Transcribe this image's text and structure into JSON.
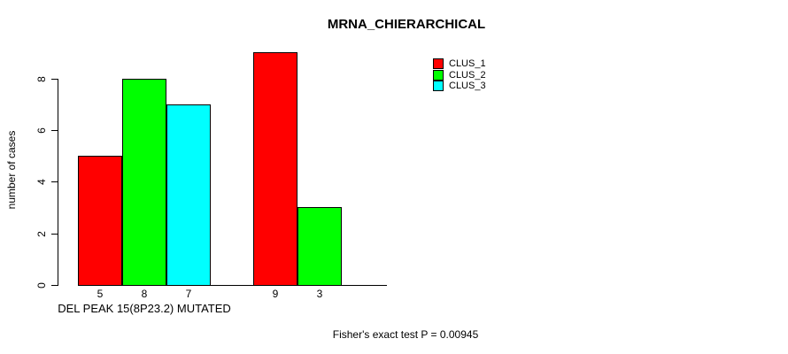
{
  "chart_data": {
    "type": "bar",
    "title": "MRNA_CHIERARCHICAL",
    "ylabel": "number of cases",
    "xlabel": "",
    "ylim": [
      0,
      9
    ],
    "yticks": [
      0,
      2,
      4,
      6,
      8
    ],
    "grid": false,
    "legend_position": "top-right",
    "series": [
      {
        "name": "CLUS_1",
        "color": "#FF0000"
      },
      {
        "name": "CLUS_2",
        "color": "#00FF00"
      },
      {
        "name": "CLUS_3",
        "color": "#00FFFF"
      }
    ],
    "groups": [
      {
        "label": "DEL PEAK 15(8P23.2) MUTATED",
        "values": [
          5,
          8,
          7
        ]
      },
      {
        "label": "",
        "values": [
          9,
          3,
          0
        ]
      }
    ],
    "bar_value_labels": [
      "5",
      "8",
      "7",
      "9",
      "3"
    ],
    "annotation": "Fisher's exact test P = 0.00945"
  }
}
